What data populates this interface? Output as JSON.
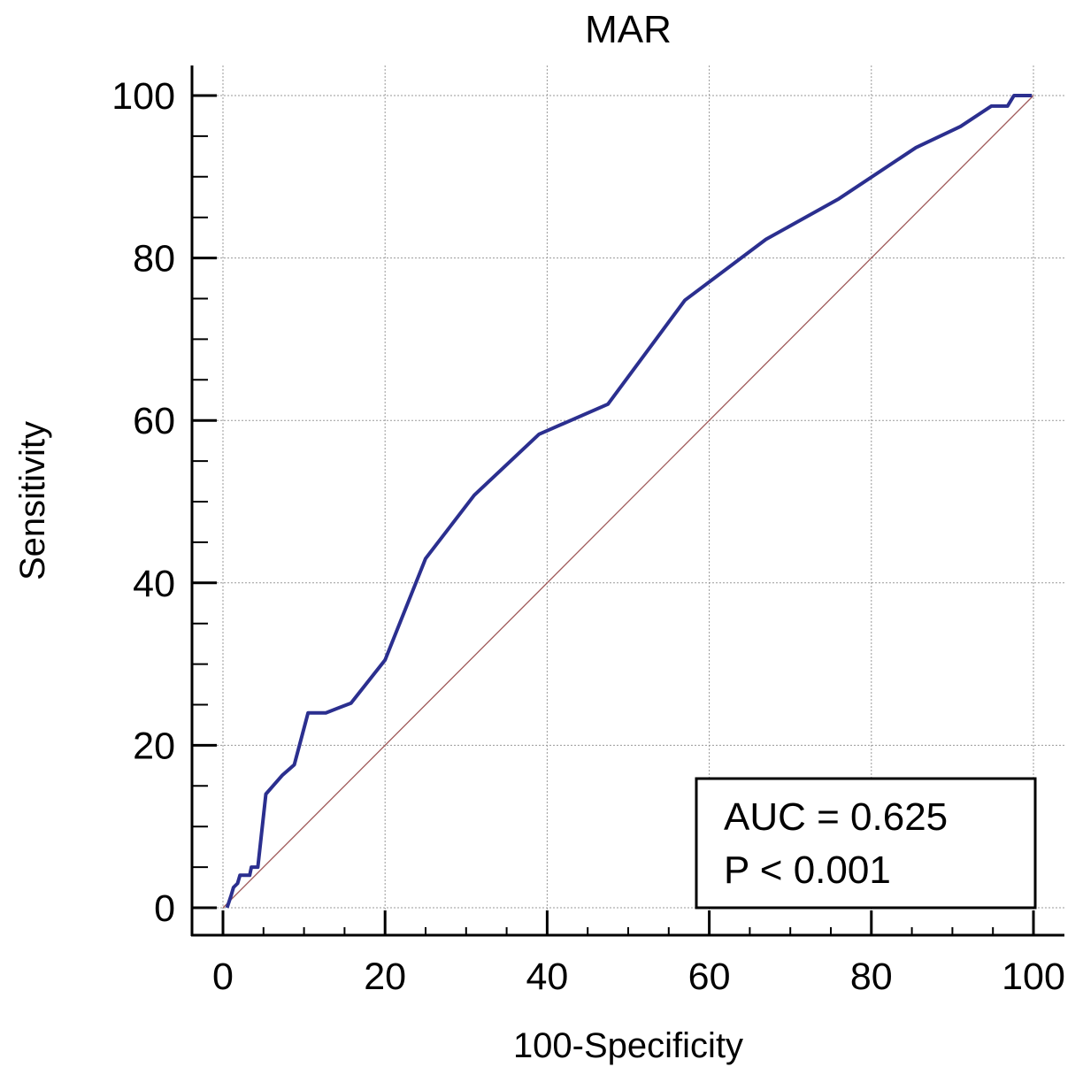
{
  "chart_data": {
    "type": "line",
    "title": "MAR",
    "xlabel": "100-Specificity",
    "ylabel": "Sensitivity",
    "xlim": [
      0,
      100
    ],
    "ylim": [
      0,
      100
    ],
    "xticks": [
      "0",
      "20",
      "40",
      "60",
      "80",
      "100"
    ],
    "yticks": [
      "0",
      "20",
      "40",
      "60",
      "80",
      "100"
    ],
    "grid": true,
    "colors": {
      "roc": "#2b2f8f",
      "reference": "#a05a5a"
    },
    "series": [
      {
        "x": [
          0.5,
          1,
          1.3,
          1.8,
          2.1,
          3.3,
          3.5,
          4.3,
          5.3,
          7.3,
          8.8,
          10.5,
          12.7,
          15.8,
          20,
          25,
          31,
          39,
          47.5,
          57,
          67,
          76,
          85.5,
          91,
          94.8,
          96.8,
          97.6,
          99.8
        ],
        "y": [
          0,
          1.5,
          2.5,
          3,
          4,
          4,
          5,
          5,
          14,
          16.3,
          17.6,
          24,
          24,
          25.2,
          30.5,
          43,
          50.8,
          58.3,
          62,
          74.8,
          82.3,
          87.3,
          93.6,
          96.2,
          98.7,
          98.7,
          100,
          100
        ]
      },
      {
        "x": [
          0,
          100
        ],
        "y": [
          0,
          100
        ]
      }
    ],
    "annotation": {
      "lines": [
        "AUC = 0.625",
        "P < 0.001"
      ],
      "placement": "bottom-right"
    }
  }
}
